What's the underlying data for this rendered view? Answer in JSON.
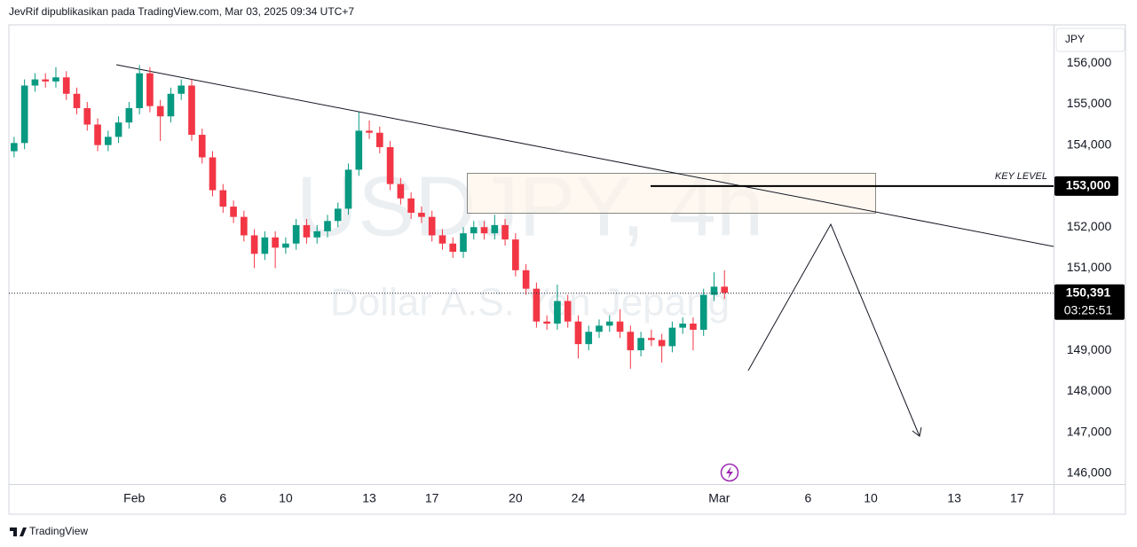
{
  "header": "JevRif dipublikasikan pada TradingView.com, Mar 03, 2025 09:34 UTC+7",
  "footer": "TradingView",
  "chart_data": {
    "type": "candlestick",
    "title": "USDJPY, 4h",
    "subtitle": "Dollar A.S. Yen Jepang",
    "currency": "JPY",
    "annotation": "KEY LEVEL",
    "x": [
      1,
      3,
      5,
      7,
      9,
      11,
      13,
      15,
      17,
      19,
      21,
      23,
      25,
      27,
      29,
      31,
      33,
      35,
      37,
      39,
      41,
      43,
      45,
      47,
      49,
      51,
      53,
      55,
      57,
      59,
      61,
      63,
      65,
      67,
      69,
      71,
      73,
      75,
      77,
      79,
      81,
      83,
      85,
      87,
      89,
      91,
      93,
      95,
      97,
      99,
      101,
      103,
      105,
      107,
      109,
      111,
      113,
      115,
      117,
      119,
      121,
      123,
      125,
      127,
      129,
      131,
      133,
      135,
      137
    ],
    "open": [
      153850,
      154050,
      155450,
      155600,
      155550,
      155650,
      155250,
      154900,
      154500,
      154000,
      154200,
      154550,
      154900,
      155750,
      154950,
      154700,
      155250,
      155450,
      154250,
      153700,
      152900,
      152500,
      152250,
      151800,
      151350,
      151750,
      151500,
      151600,
      152050,
      151750,
      151900,
      152150,
      152450,
      153400,
      154350,
      154300,
      153950,
      153050,
      152700,
      152350,
      152250,
      151800,
      151600,
      151400,
      151850,
      152000,
      151850,
      152050,
      151700,
      150950,
      150500,
      149700,
      149650,
      150200,
      149700,
      149150,
      149450,
      149600,
      149700,
      149450,
      149000,
      149300,
      149250,
      149100,
      149550,
      149650,
      149500,
      150350,
      150550
    ],
    "high": [
      154200,
      155600,
      155750,
      155750,
      155900,
      155800,
      155400,
      155050,
      154650,
      154350,
      154700,
      155050,
      155950,
      155900,
      155100,
      155400,
      155600,
      155600,
      154400,
      153850,
      153050,
      152650,
      152400,
      151950,
      151900,
      151900,
      151750,
      152200,
      152200,
      152050,
      152300,
      152600,
      153550,
      154800,
      154600,
      154450,
      154100,
      153200,
      152850,
      152500,
      152400,
      151950,
      151750,
      152000,
      152150,
      152150,
      152300,
      152200,
      151850,
      151100,
      150650,
      149850,
      150600,
      150350,
      149850,
      149600,
      149750,
      149850,
      150000,
      149600,
      149450,
      149500,
      149400,
      149700,
      149800,
      149800,
      150500,
      150900,
      150950
    ],
    "low": [
      153700,
      153900,
      155300,
      155400,
      155400,
      155100,
      154750,
      154350,
      153850,
      153850,
      154050,
      154400,
      154750,
      154800,
      154100,
      154550,
      155100,
      154100,
      153550,
      152750,
      152350,
      152100,
      151650,
      151000,
      151200,
      151000,
      151350,
      151450,
      151600,
      151600,
      151750,
      152000,
      152300,
      153250,
      154150,
      153800,
      152900,
      152550,
      152200,
      152100,
      151650,
      151450,
      151250,
      151250,
      151700,
      151700,
      151700,
      151550,
      150800,
      150350,
      149550,
      149500,
      149500,
      149550,
      148800,
      149000,
      149300,
      149450,
      149300,
      148550,
      148850,
      149100,
      148700,
      148950,
      149400,
      149000,
      149350,
      150200,
      150250
    ],
    "close": [
      154050,
      155450,
      155600,
      155550,
      155650,
      155250,
      154900,
      154500,
      154000,
      154200,
      154550,
      154900,
      155750,
      154950,
      154700,
      155250,
      155450,
      154250,
      153700,
      152900,
      152500,
      152250,
      151800,
      151350,
      151750,
      151500,
      151600,
      152050,
      151750,
      151900,
      152150,
      152450,
      153400,
      154350,
      154300,
      153950,
      153050,
      152700,
      152350,
      152250,
      151800,
      151600,
      151400,
      151850,
      152000,
      151850,
      152050,
      151700,
      150950,
      150500,
      149700,
      149650,
      150200,
      149700,
      149150,
      149450,
      149600,
      149700,
      149450,
      149000,
      149300,
      149250,
      149100,
      149550,
      149650,
      149500,
      150350,
      150550,
      150400
    ],
    "up_color": "#089981",
    "down_color": "#f23645",
    "xlim": [
      0,
      200
    ],
    "xticks": [
      {
        "value": 24,
        "label": "Feb"
      },
      {
        "value": 41,
        "label": "6"
      },
      {
        "value": 53,
        "label": "10"
      },
      {
        "value": 69,
        "label": "13"
      },
      {
        "value": 81,
        "label": "17"
      },
      {
        "value": 97,
        "label": "20"
      },
      {
        "value": 109,
        "label": "24"
      },
      {
        "value": 136,
        "label": "Mar"
      },
      {
        "value": 153,
        "label": "6"
      },
      {
        "value": 165,
        "label": "10"
      },
      {
        "value": 181,
        "label": "13"
      },
      {
        "value": 193,
        "label": "17"
      }
    ],
    "ylim": [
      145740,
      156930
    ],
    "yticks": [
      {
        "value": 146000,
        "label": "146,000"
      },
      {
        "value": 147000,
        "label": "147,000"
      },
      {
        "value": 148000,
        "label": "148,000"
      },
      {
        "value": 149000,
        "label": "149,000"
      },
      {
        "value": 150000,
        "label": "150,000"
      },
      {
        "value": 151000,
        "label": "151,000"
      },
      {
        "value": 152000,
        "label": "152,000"
      },
      {
        "value": 153000,
        "label": "153,000"
      },
      {
        "value": 154000,
        "label": "154,000"
      },
      {
        "value": 155000,
        "label": "155,000"
      },
      {
        "value": 156000,
        "label": "156,000"
      }
    ],
    "key_level": {
      "value": 153000,
      "label": "153,000"
    },
    "last_price": {
      "value": 150391,
      "label": "150,391"
    },
    "countdown": "03:25:51"
  }
}
